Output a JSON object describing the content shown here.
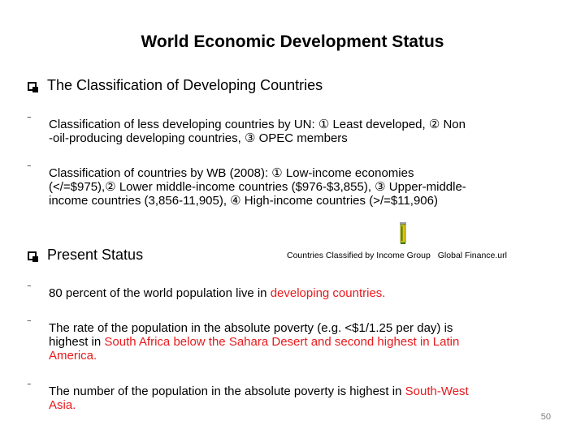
{
  "title": "World Economic Development Status",
  "section1": {
    "heading": "The Classification of Developing Countries",
    "bullets": [
      {
        "line1": "Classification of less developing countries by UN: ① Least developed, ② Non",
        "line2": "-oil-producing developing countries, ③ OPEC members"
      },
      {
        "line1": "Classification of countries by WB (2008): ① Low-income economies",
        "line2": "(</=$975),② Lower middle-income countries ($976-$3,855), ③ Upper-middle-",
        "line3": "income countries (3,856-11,905), ④ High-income countries (>/=$11,906)"
      }
    ]
  },
  "section2": {
    "heading": "Present Status",
    "link_label": "Countries Classified by Income Group",
    "link_file": "Global Finance.url",
    "bullets": [
      {
        "text_a": "80 percent of the world population live in ",
        "text_b": "developing  countries."
      },
      {
        "line1": "The rate of the population in the absolute poverty (e.g. <$1/1.25 per day) is",
        "line2_a": "highest in ",
        "line2_b": "South Africa below the Sahara Desert and second highest in Latin",
        "line3": "America."
      },
      {
        "line1_a": "The number of the population in the absolute poverty is highest in ",
        "line1_b": "South-West",
        "line2": "Asia."
      }
    ]
  },
  "page_number": "50",
  "colors": {
    "highlight": "#e8191c",
    "page_number": "#7f7f7f"
  }
}
